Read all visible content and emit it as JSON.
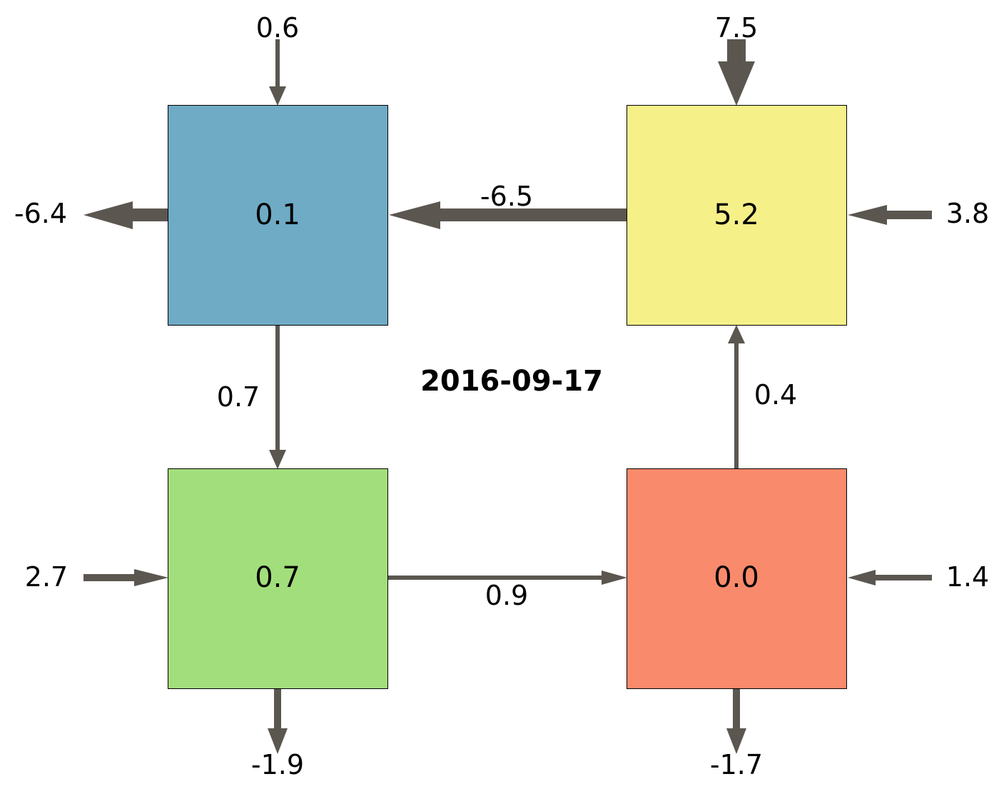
{
  "title": "2016-09-17",
  "arrow_color": "#5b5750",
  "boxes": {
    "top_left": {
      "value": "0.1",
      "color": "#6fabc5"
    },
    "top_right": {
      "value": "5.2",
      "color": "#f6f088"
    },
    "bottom_left": {
      "value": "0.7",
      "color": "#a3de7c"
    },
    "bottom_right": {
      "value": "0.0",
      "color": "#f98a6b"
    }
  },
  "flows": {
    "top_in_tl": "0.6",
    "top_in_tr": "7.5",
    "left_out_tl": "-6.4",
    "right_in_tr": "3.8",
    "tr_to_tl": "-6.5",
    "tl_to_bl": "0.7",
    "br_to_tr": "0.4",
    "left_in_bl": "2.7",
    "bl_to_br": "0.9",
    "right_in_br": "1.4",
    "bottom_out_bl": "-1.9",
    "bottom_out_br": "-1.7"
  }
}
